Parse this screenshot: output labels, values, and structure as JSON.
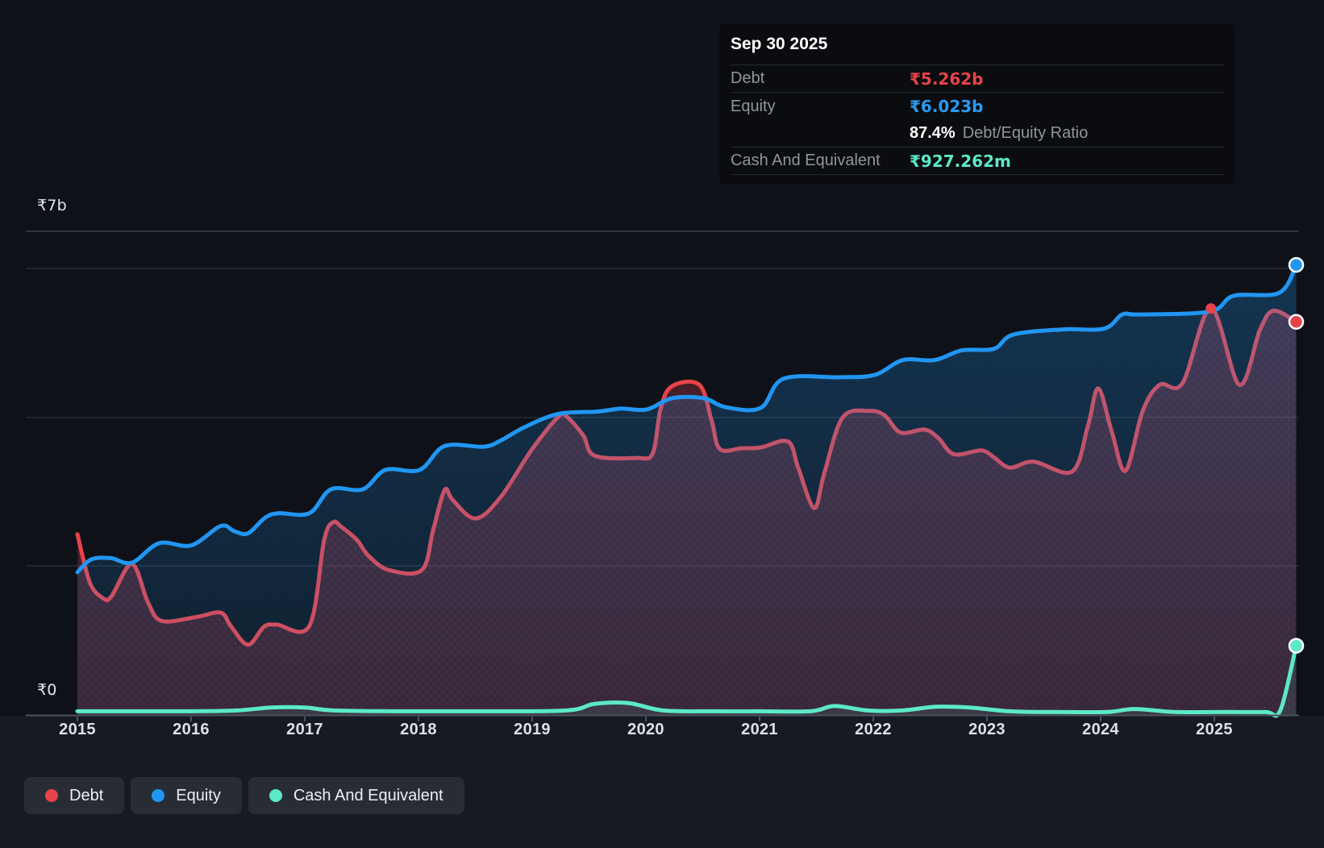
{
  "tooltip": {
    "date": "Sep 30 2025",
    "rows": [
      {
        "label": "Debt",
        "value": "₹5.262b"
      },
      {
        "label": "Equity",
        "value": "₹6.023b"
      },
      {
        "label": "",
        "strong": "87.4%",
        "rest": "Debt/Equity Ratio"
      },
      {
        "label": "Cash And Equivalent",
        "value": "₹927.262m"
      }
    ]
  },
  "axes": {
    "y_top": "₹7b",
    "y_bottom": "₹0",
    "x_labels": [
      "2015",
      "2016",
      "2017",
      "2018",
      "2019",
      "2020",
      "2021",
      "2022",
      "2023",
      "2024",
      "2025"
    ]
  },
  "legend": {
    "items": [
      {
        "label": "Debt",
        "color": "#e8434a"
      },
      {
        "label": "Equity",
        "color": "#2196f3"
      },
      {
        "label": "Cash And Equivalent",
        "color": "#5ce9c6"
      }
    ]
  },
  "chart_data": {
    "type": "area",
    "x_unit": "year",
    "y_unit": "₹ billions",
    "xlim": [
      2015,
      2025.72
    ],
    "ylim": [
      0,
      7
    ],
    "grid": "horizontal",
    "legend_position": "bottom-left",
    "x_ticks": [
      2015,
      2016,
      2017,
      2018,
      2019,
      2020,
      2021,
      2022,
      2023,
      2024,
      2025
    ],
    "last_point_date": "Sep 30 2025",
    "series": [
      {
        "name": "Debt",
        "color": "#e8434a",
        "fill": "maroon-translucent",
        "points": [
          [
            2015.0,
            2.42
          ],
          [
            2015.11,
            1.77
          ],
          [
            2015.23,
            1.56
          ],
          [
            2015.3,
            1.59
          ],
          [
            2015.48,
            2.02
          ],
          [
            2015.62,
            1.51
          ],
          [
            2015.74,
            1.26
          ],
          [
            2016.04,
            1.31
          ],
          [
            2016.26,
            1.37
          ],
          [
            2016.35,
            1.19
          ],
          [
            2016.5,
            0.94
          ],
          [
            2016.64,
            1.18
          ],
          [
            2016.75,
            1.21
          ],
          [
            2017.04,
            1.19
          ],
          [
            2017.17,
            2.34
          ],
          [
            2017.25,
            2.58
          ],
          [
            2017.32,
            2.52
          ],
          [
            2017.46,
            2.34
          ],
          [
            2017.56,
            2.13
          ],
          [
            2017.74,
            1.94
          ],
          [
            2018.03,
            1.94
          ],
          [
            2018.13,
            2.48
          ],
          [
            2018.23,
            3.01
          ],
          [
            2018.3,
            2.88
          ],
          [
            2018.5,
            2.63
          ],
          [
            2018.72,
            2.91
          ],
          [
            2019.0,
            3.56
          ],
          [
            2019.23,
            3.99
          ],
          [
            2019.3,
            4.0
          ],
          [
            2019.45,
            3.74
          ],
          [
            2019.55,
            3.47
          ],
          [
            2019.92,
            3.44
          ],
          [
            2020.06,
            3.5
          ],
          [
            2020.13,
            4.1
          ],
          [
            2020.23,
            4.4
          ],
          [
            2020.47,
            4.42
          ],
          [
            2020.58,
            3.93
          ],
          [
            2020.65,
            3.56
          ],
          [
            2020.84,
            3.57
          ],
          [
            2021.01,
            3.58
          ],
          [
            2021.25,
            3.66
          ],
          [
            2021.34,
            3.31
          ],
          [
            2021.48,
            2.77
          ],
          [
            2021.57,
            3.24
          ],
          [
            2021.73,
            3.98
          ],
          [
            2021.96,
            4.07
          ],
          [
            2022.1,
            4.01
          ],
          [
            2022.24,
            3.78
          ],
          [
            2022.45,
            3.82
          ],
          [
            2022.57,
            3.71
          ],
          [
            2022.71,
            3.49
          ],
          [
            2022.95,
            3.54
          ],
          [
            2023.06,
            3.45
          ],
          [
            2023.2,
            3.31
          ],
          [
            2023.41,
            3.39
          ],
          [
            2023.75,
            3.26
          ],
          [
            2023.89,
            3.88
          ],
          [
            2023.98,
            4.37
          ],
          [
            2024.1,
            3.78
          ],
          [
            2024.22,
            3.27
          ],
          [
            2024.37,
            4.07
          ],
          [
            2024.52,
            4.42
          ],
          [
            2024.72,
            4.44
          ],
          [
            2024.97,
            5.44
          ],
          [
            2025.22,
            4.42
          ],
          [
            2025.4,
            5.15
          ],
          [
            2025.52,
            5.41
          ],
          [
            2025.72,
            5.262
          ]
        ]
      },
      {
        "name": "Equity",
        "color": "#2196f3",
        "fill": "blue-translucent",
        "points": [
          [
            2015.0,
            1.91
          ],
          [
            2015.12,
            2.08
          ],
          [
            2015.29,
            2.1
          ],
          [
            2015.48,
            2.04
          ],
          [
            2015.72,
            2.3
          ],
          [
            2016.0,
            2.27
          ],
          [
            2016.26,
            2.53
          ],
          [
            2016.38,
            2.46
          ],
          [
            2016.5,
            2.43
          ],
          [
            2016.65,
            2.64
          ],
          [
            2016.77,
            2.7
          ],
          [
            2017.04,
            2.7
          ],
          [
            2017.23,
            3.02
          ],
          [
            2017.51,
            3.02
          ],
          [
            2017.71,
            3.28
          ],
          [
            2018.01,
            3.28
          ],
          [
            2018.23,
            3.6
          ],
          [
            2018.57,
            3.59
          ],
          [
            2018.72,
            3.67
          ],
          [
            2018.93,
            3.85
          ],
          [
            2019.23,
            4.03
          ],
          [
            2019.57,
            4.06
          ],
          [
            2019.78,
            4.1
          ],
          [
            2020.01,
            4.09
          ],
          [
            2020.23,
            4.24
          ],
          [
            2020.51,
            4.24
          ],
          [
            2020.7,
            4.12
          ],
          [
            2021.01,
            4.11
          ],
          [
            2021.21,
            4.5
          ],
          [
            2021.7,
            4.52
          ],
          [
            2022.01,
            4.55
          ],
          [
            2022.26,
            4.75
          ],
          [
            2022.54,
            4.75
          ],
          [
            2022.78,
            4.88
          ],
          [
            2023.06,
            4.9
          ],
          [
            2023.23,
            5.09
          ],
          [
            2023.66,
            5.16
          ],
          [
            2024.03,
            5.17
          ],
          [
            2024.19,
            5.36
          ],
          [
            2024.34,
            5.36
          ],
          [
            2024.96,
            5.4
          ],
          [
            2025.17,
            5.61
          ],
          [
            2025.57,
            5.65
          ],
          [
            2025.72,
            6.023
          ]
        ]
      },
      {
        "name": "Cash And Equivalent",
        "color": "#5ce9c6",
        "fill": "teal-translucent",
        "points": [
          [
            2015.0,
            0.05
          ],
          [
            2015.5,
            0.05
          ],
          [
            2016.0,
            0.05
          ],
          [
            2016.4,
            0.06
          ],
          [
            2016.7,
            0.1
          ],
          [
            2017.0,
            0.1
          ],
          [
            2017.25,
            0.06
          ],
          [
            2017.8,
            0.05
          ],
          [
            2018.5,
            0.05
          ],
          [
            2019.3,
            0.06
          ],
          [
            2019.55,
            0.15
          ],
          [
            2019.85,
            0.16
          ],
          [
            2020.15,
            0.06
          ],
          [
            2020.6,
            0.05
          ],
          [
            2021.0,
            0.05
          ],
          [
            2021.45,
            0.05
          ],
          [
            2021.66,
            0.12
          ],
          [
            2021.95,
            0.06
          ],
          [
            2022.25,
            0.06
          ],
          [
            2022.55,
            0.11
          ],
          [
            2022.85,
            0.1
          ],
          [
            2023.2,
            0.05
          ],
          [
            2023.6,
            0.04
          ],
          [
            2024.05,
            0.04
          ],
          [
            2024.3,
            0.08
          ],
          [
            2024.65,
            0.04
          ],
          [
            2025.1,
            0.04
          ],
          [
            2025.45,
            0.04
          ],
          [
            2025.58,
            0.06
          ],
          [
            2025.72,
            0.927
          ]
        ]
      }
    ],
    "markers": {
      "end_dots": true,
      "peaks": [
        {
          "series": "Debt",
          "x": 2024.97,
          "value": 5.44
        }
      ]
    },
    "last_values": {
      "Debt": "₹5.262b",
      "Equity": "₹6.023b",
      "Cash And Equivalent": "₹927.262m",
      "debt_equity_ratio": "87.4%"
    }
  }
}
